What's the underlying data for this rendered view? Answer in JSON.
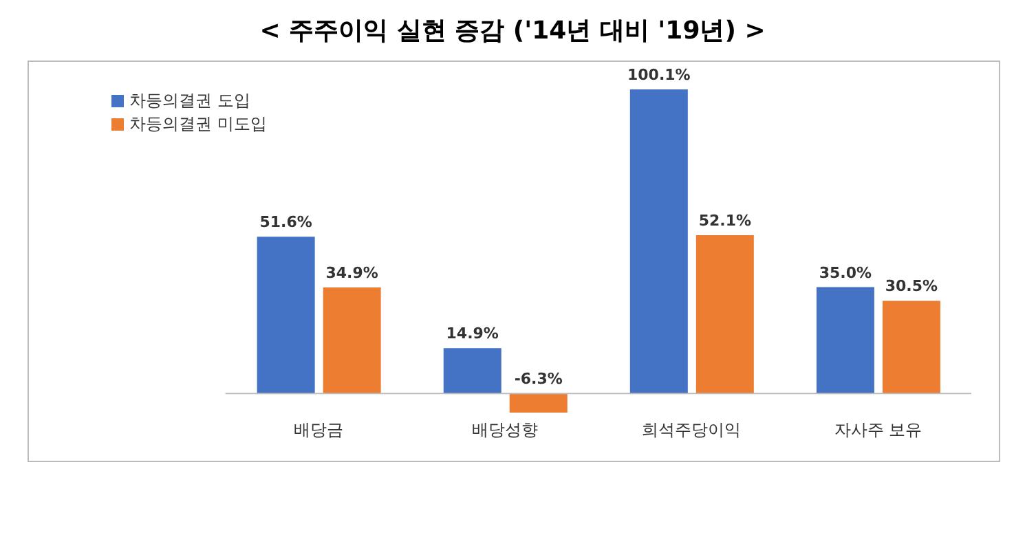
{
  "chart_data": {
    "type": "bar",
    "title": "< 주주이익 실현 증감 ('14년 대비 '19년) >",
    "categories": [
      "배당금",
      "배당성향",
      "희석주당이익",
      "자사주 보유"
    ],
    "series": [
      {
        "name": "차등의결권 도입",
        "color": "#4472c4",
        "values": [
          51.6,
          14.9,
          100.1,
          35.0
        ],
        "value_labels": [
          "51.6%",
          "14.9%",
          "100.1%",
          "35.0%"
        ]
      },
      {
        "name": "차등의결권 미도입",
        "color": "#ed7d31",
        "values": [
          34.9,
          -6.3,
          52.1,
          30.5
        ],
        "value_labels": [
          "34.9%",
          "-6.3%",
          "52.1%",
          "30.5%"
        ]
      }
    ],
    "legend": "top left",
    "grid": false
  }
}
